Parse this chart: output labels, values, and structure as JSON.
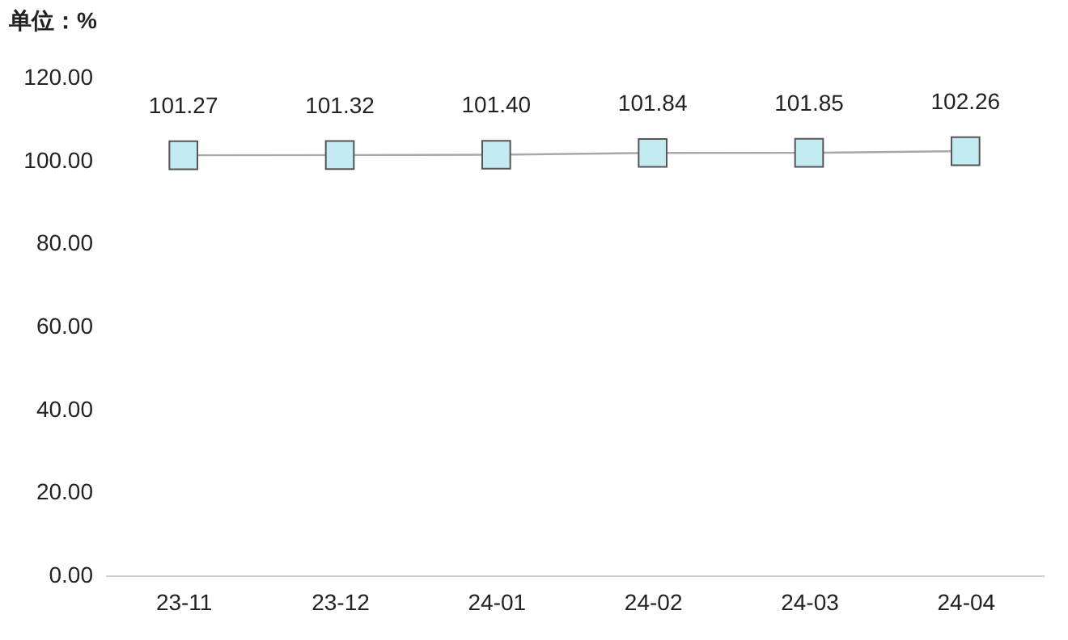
{
  "chart_data": {
    "type": "line",
    "ylabel": "单位：%",
    "categories": [
      "23-11",
      "23-12",
      "24-01",
      "24-02",
      "24-03",
      "24-04"
    ],
    "series": [
      {
        "color": "#c4ebf1",
        "values": [
          101.27,
          101.32,
          101.4,
          101.84,
          101.85,
          102.26
        ]
      }
    ],
    "ylim": [
      0,
      120
    ],
    "yticks": [
      {
        "value": 0,
        "label": "0.00"
      },
      {
        "value": 20,
        "label": "20.00"
      },
      {
        "value": 40,
        "label": "40.00"
      },
      {
        "value": 60,
        "label": "60.00"
      },
      {
        "value": 80,
        "label": "80.00"
      },
      {
        "value": 100,
        "label": "100.00"
      },
      {
        "value": 120,
        "label": "120.00"
      }
    ],
    "value_labels": [
      "101.27",
      "101.32",
      "101.40",
      "101.84",
      "101.85",
      "102.26"
    ],
    "grid": false,
    "legend": false,
    "marker": "square",
    "line_style": "solid"
  }
}
